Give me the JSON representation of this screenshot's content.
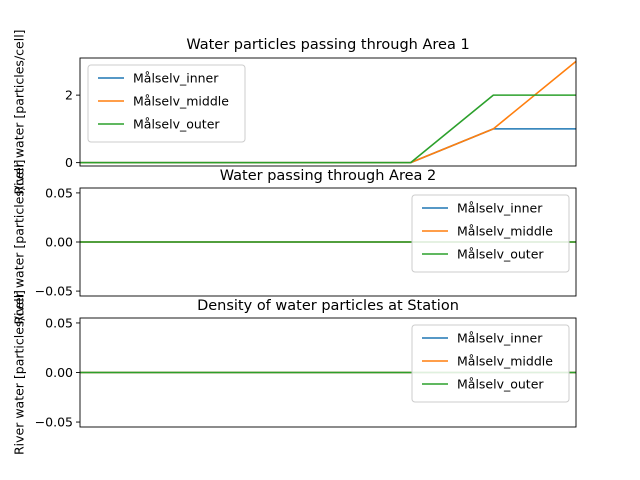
{
  "chart_data": [
    {
      "type": "line",
      "title": "Water particles passing through Area 1",
      "ylabel": "River water [particles/cell]",
      "x": [
        0,
        1,
        2,
        3,
        4,
        5,
        6
      ],
      "ylim": [
        -0.1,
        3.1
      ],
      "yticks": [
        0,
        2
      ],
      "ytick_labels": [
        "0",
        "2"
      ],
      "series": [
        {
          "name": "Målselv_inner",
          "color": "#1f77b4",
          "values": [
            0,
            0,
            0,
            0,
            0,
            1,
            1
          ]
        },
        {
          "name": "Målselv_middle",
          "color": "#ff7f0e",
          "values": [
            0,
            0,
            0,
            0,
            0,
            1,
            3
          ]
        },
        {
          "name": "Målselv_outer",
          "color": "#2ca02c",
          "values": [
            0,
            0,
            0,
            0,
            0,
            2,
            2
          ]
        }
      ],
      "legend": "upper left",
      "grid": false
    },
    {
      "type": "line",
      "title": "Water passing through Area 2",
      "ylabel": "River water [particles/cell]",
      "x": [
        0,
        1,
        2,
        3,
        4,
        5,
        6
      ],
      "ylim": [
        -0.055,
        0.055
      ],
      "yticks": [
        -0.05,
        0,
        0.05
      ],
      "ytick_labels": [
        "−0.05",
        "0.00",
        "0.05"
      ],
      "series": [
        {
          "name": "Målselv_inner",
          "color": "#1f77b4",
          "values": [
            0,
            0,
            0,
            0,
            0,
            0,
            0
          ]
        },
        {
          "name": "Målselv_middle",
          "color": "#ff7f0e",
          "values": [
            0,
            0,
            0,
            0,
            0,
            0,
            0
          ]
        },
        {
          "name": "Målselv_outer",
          "color": "#2ca02c",
          "values": [
            0,
            0,
            0,
            0,
            0,
            0,
            0
          ]
        }
      ],
      "legend": "upper right",
      "grid": false
    },
    {
      "type": "line",
      "title": "Density of water particles at Station",
      "ylabel": "River water [particles/cell]",
      "x": [
        0,
        1,
        2,
        3,
        4,
        5,
        6
      ],
      "ylim": [
        -0.055,
        0.055
      ],
      "yticks": [
        -0.05,
        0,
        0.05
      ],
      "ytick_labels": [
        "−0.05",
        "0.00",
        "0.05"
      ],
      "series": [
        {
          "name": "Målselv_inner",
          "color": "#1f77b4",
          "values": [
            0,
            0,
            0,
            0,
            0,
            0,
            0
          ]
        },
        {
          "name": "Målselv_middle",
          "color": "#ff7f0e",
          "values": [
            0,
            0,
            0,
            0,
            0,
            0,
            0
          ]
        },
        {
          "name": "Målselv_outer",
          "color": "#2ca02c",
          "values": [
            0,
            0,
            0,
            0,
            0,
            0,
            0
          ]
        }
      ],
      "legend": "upper right",
      "grid": false
    }
  ]
}
